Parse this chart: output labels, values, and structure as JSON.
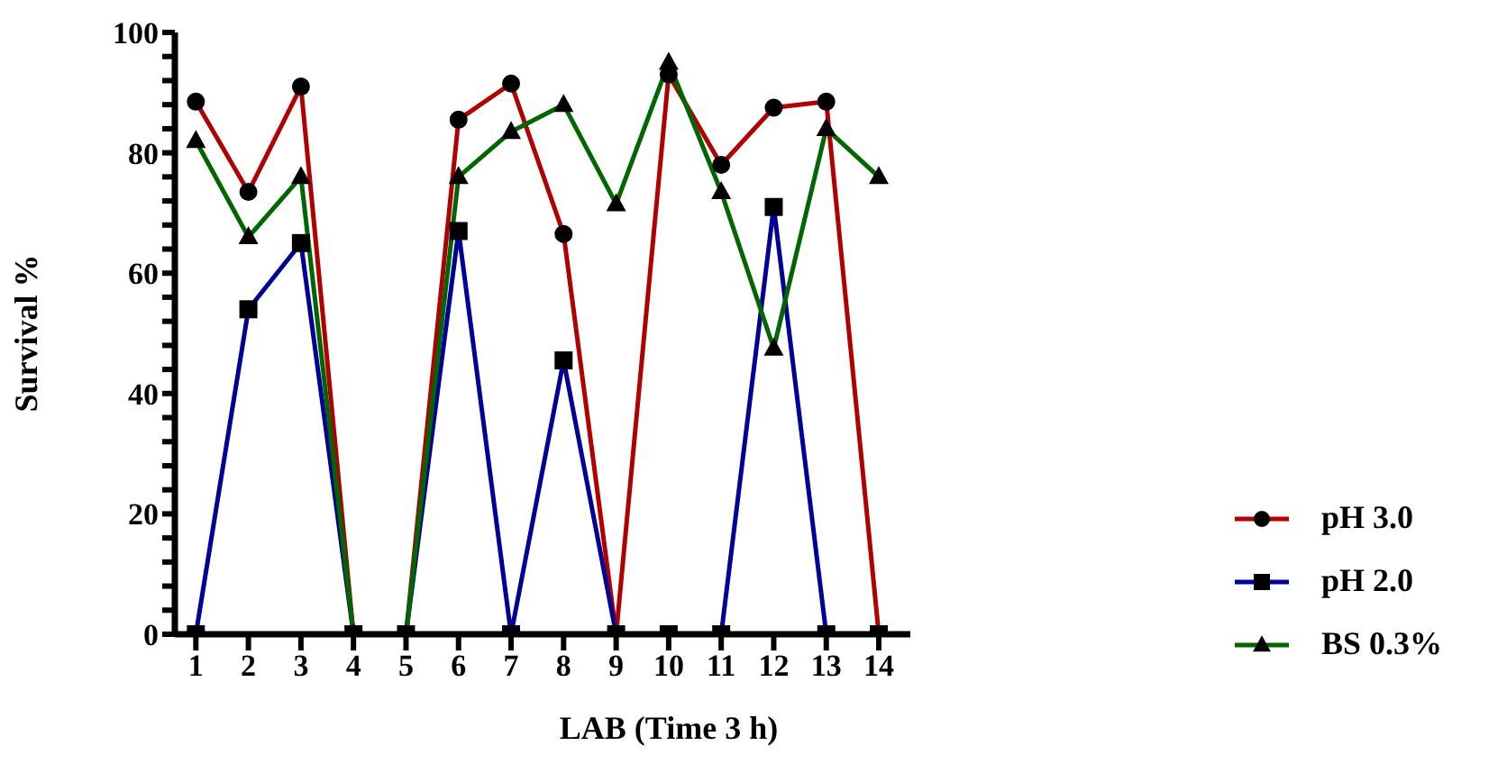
{
  "chart_data": {
    "type": "line",
    "xlabel": "LAB (Time 3 h)",
    "ylabel": "Survival %",
    "x": [
      1,
      2,
      3,
      4,
      5,
      6,
      7,
      8,
      9,
      10,
      11,
      12,
      13,
      14
    ],
    "xlim": [
      0.6,
      14.6
    ],
    "xticks": [
      1,
      2,
      3,
      4,
      5,
      6,
      7,
      8,
      9,
      10,
      11,
      12,
      13,
      14
    ],
    "ylim": [
      0,
      100
    ],
    "yticks": [
      0,
      {
        "value": 4,
        "label": null
      },
      {
        "value": 8,
        "label": null
      },
      {
        "value": 12,
        "label": null
      },
      {
        "value": 16,
        "label": null
      },
      20,
      {
        "value": 24,
        "label": null
      },
      {
        "value": 28,
        "label": null
      },
      {
        "value": 32,
        "label": null
      },
      {
        "value": 36,
        "label": null
      },
      40,
      {
        "value": 44,
        "label": null
      },
      {
        "value": 48,
        "label": null
      },
      {
        "value": 52,
        "label": null
      },
      {
        "value": 56,
        "label": null
      },
      60,
      {
        "value": 64,
        "label": null
      },
      {
        "value": 68,
        "label": null
      },
      {
        "value": 72,
        "label": null
      },
      {
        "value": 76,
        "label": null
      },
      80,
      {
        "value": 84,
        "label": null
      },
      {
        "value": 88,
        "label": null
      },
      {
        "value": 92,
        "label": null
      },
      {
        "value": 96,
        "label": null
      },
      100
    ],
    "grid": false,
    "legend": "bottom right",
    "line_style": "solid",
    "series": [
      {
        "name": "pH 3.0",
        "color": "#b00000",
        "marker": "circle",
        "values": [
          88.5,
          73.5,
          91,
          0,
          0,
          85.5,
          91.5,
          66.5,
          0,
          93,
          78,
          87.5,
          88.5,
          0
        ]
      },
      {
        "name": "pH 2.0",
        "color": "#000099",
        "marker": "square",
        "values": [
          0,
          54,
          65,
          0,
          0,
          67,
          0,
          45.5,
          0,
          0,
          0,
          71,
          0,
          0
        ]
      },
      {
        "name": "BS 0.3%",
        "color": "#006600",
        "marker": "triangle",
        "values": [
          82,
          66,
          76,
          0,
          0,
          76,
          83.5,
          88,
          71.5,
          95,
          73.5,
          47.5,
          84,
          76
        ]
      }
    ]
  }
}
